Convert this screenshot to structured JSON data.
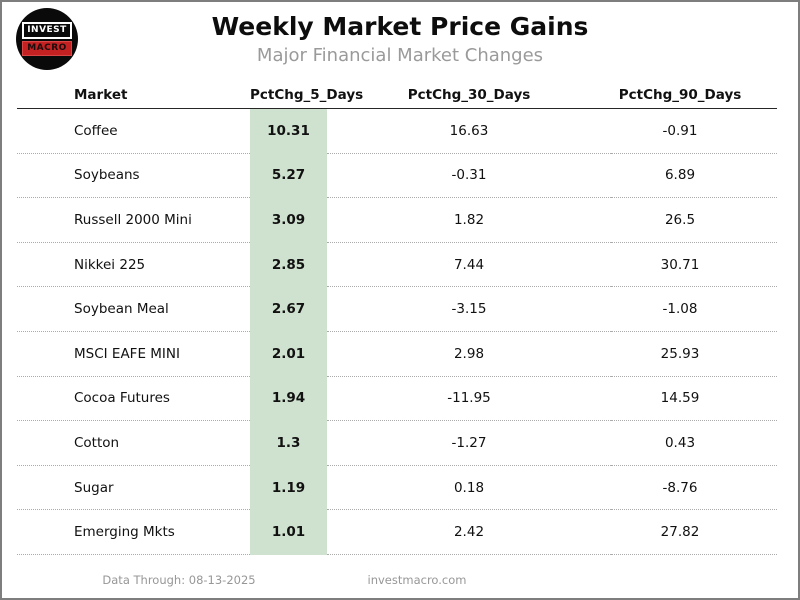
{
  "page": {
    "title": "Weekly Market Price Gains",
    "subtitle": "Major Financial Market Changes"
  },
  "logo": {
    "line1": "INVEST",
    "line2": "MACRO"
  },
  "footer": {
    "data_through": "Data Through: 08-13-2025",
    "website": "investmacro.com"
  },
  "colors": {
    "highlight_green": "#cfe2cf",
    "logo_red": "#c42222",
    "subtitle_gray": "#9a9a9a",
    "dotted_line": "#ababab",
    "frame_border": "#7e7e7e"
  },
  "chart_data": {
    "type": "table",
    "title": "Weekly Market Price Gains",
    "subtitle": "Major Financial Market Changes",
    "columns": [
      "Market",
      "PctChg_5_Days",
      "PctChg_30_Days",
      "PctChg_90_Days"
    ],
    "highlighted_column": "PctChg_5_Days",
    "rows": [
      [
        "Coffee",
        "10.31",
        "16.63",
        "-0.91"
      ],
      [
        "Soybeans",
        "5.27",
        "-0.31",
        "6.89"
      ],
      [
        "Russell 2000 Mini",
        "3.09",
        "1.82",
        "26.5"
      ],
      [
        "Nikkei 225",
        "2.85",
        "7.44",
        "30.71"
      ],
      [
        "Soybean Meal",
        "2.67",
        "-3.15",
        "-1.08"
      ],
      [
        "MSCI EAFE MINI",
        "2.01",
        "2.98",
        "25.93"
      ],
      [
        "Cocoa Futures",
        "1.94",
        "-11.95",
        "14.59"
      ],
      [
        "Cotton",
        "1.3",
        "-1.27",
        "0.43"
      ],
      [
        "Sugar",
        "1.19",
        "0.18",
        "-8.76"
      ],
      [
        "Emerging Mkts",
        "1.01",
        "2.42",
        "27.82"
      ]
    ]
  }
}
